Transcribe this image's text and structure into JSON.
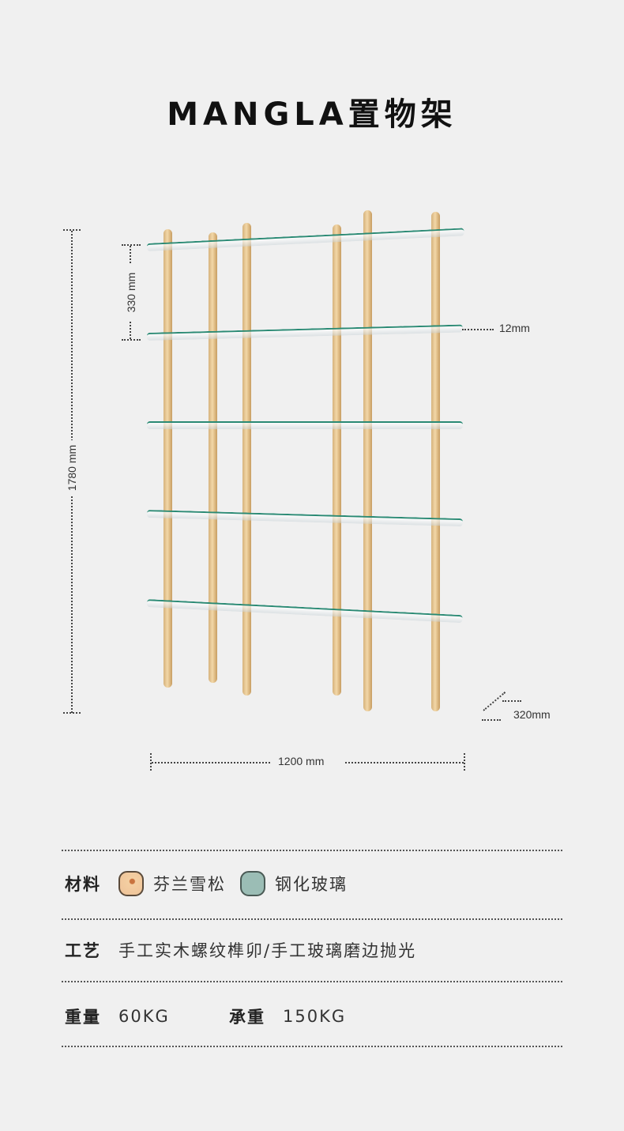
{
  "title": "MANGLA置物架",
  "dimensions": {
    "height_total": "1780 mm",
    "shelf_gap": "330 mm",
    "glass_thickness": "12mm",
    "depth": "320mm",
    "width": "1200 mm"
  },
  "specs": {
    "material_label": "材料",
    "material_wood": "芬兰雪松",
    "material_glass": "钢化玻璃",
    "craft_label": "工艺",
    "craft_value": "手工实木螺纹榫卯/手工玻璃磨边抛光",
    "weight_label": "重量",
    "weight_value": "60KG",
    "load_label": "承重",
    "load_value": "150KG"
  },
  "colors": {
    "background": "#f0f0f0",
    "wood": "#e8c590",
    "glass_edge": "#2a8a74",
    "glass_swatch": "#9bbdb5"
  }
}
